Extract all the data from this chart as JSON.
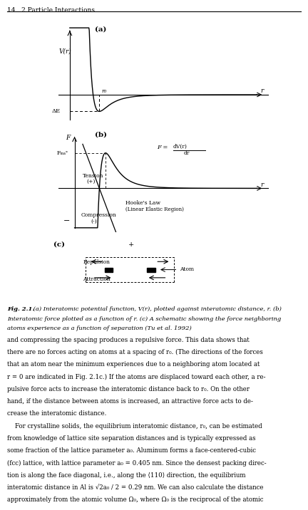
{
  "page_header": "14   2 Particle Interactions",
  "fig_caption": "Fig. 2.1. (a) Interatomic potential function, V(r), plotted against interatomic distance, r. (b)\nInteratomic force plotted as a function of r. (c) A schematic showing the force neighboring\natoms experience as a function of separation (Tu et al. 1992)",
  "body_text": "and compressing the spacing produces a repulsive force. This data shows that\nthere are no forces acting on atoms at a spacing of r₀. (The directions of the forces\nthat an atom near the minimum experiences due to a neighboring atom located at\nr = 0 are indicated in Fig. 2.1c.) If the atoms are displaced toward each other, a re-\npulsive force acts to increase the interatomic distance back to r₀. On the other\nhand, if the distance between atoms is increased, an attractive force acts to de-\ncrease the interatomic distance.\n    For crystalline solids, the equilibrium interatomic distance, r₀, can be estimated\nfrom knowledge of lattice site separation distances and is typically expressed as\nsome fraction of the lattice parameter a₀. Aluminum forms a face-centered-cubic\n(fcc) lattice, with lattice parameter a₀ = 0.405 nm. Since the densest packing direc-\ntion is along the face diagonal, i.e., along the ⟨110⟩ direction, the equilibrium\ninteratomic distance in Al is √2a₀ / 2 = 0.29 nm. We can also calculate the distance\napproximately from the atomic volume Ω₀, where Ω₀ is the reciprocal of the atomic",
  "background_color": "#ffffff",
  "text_color": "#000000",
  "line_color": "#555555",
  "dashed_color": "#888888"
}
